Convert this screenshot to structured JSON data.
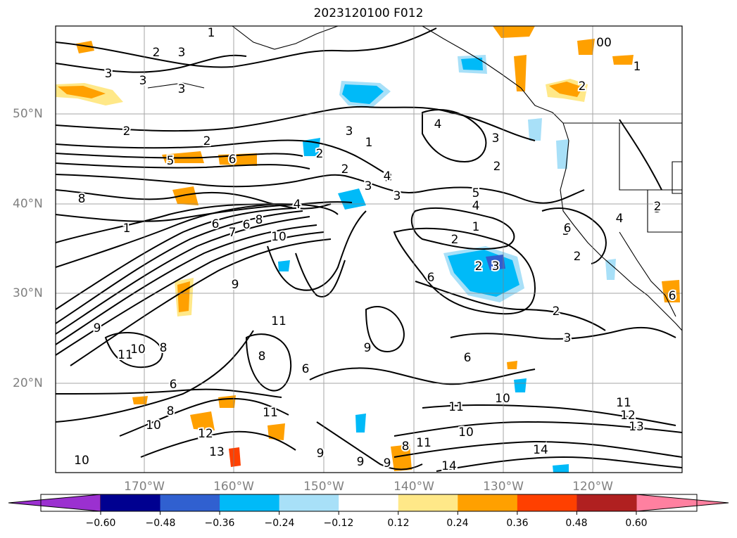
{
  "title": "2023120100 F012",
  "lat_labels": [
    "50°N",
    "40°N",
    "30°N",
    "20°N"
  ],
  "lon_labels": [
    "170°W",
    "160°W",
    "150°W",
    "140°W",
    "130°W",
    "120°W"
  ],
  "colorbar": {
    "ticks": [
      "−0.60",
      "−0.48",
      "−0.36",
      "−0.24",
      "−0.12",
      "0.12",
      "0.24",
      "0.36",
      "0.48",
      "0.60"
    ],
    "colors": [
      "#9b30d0",
      "#000090",
      "#3060d0",
      "#00baf8",
      "#a8e0f8",
      "#ffffff",
      "#ffe888",
      "#ffa000",
      "#ff4000",
      "#b02020",
      "#ff80a0"
    ]
  },
  "contour_labels": [
    {
      "text": "1"
    },
    {
      "text": "2"
    },
    {
      "text": "3"
    },
    {
      "text": "3"
    },
    {
      "text": "3"
    },
    {
      "text": "3"
    },
    {
      "text": "00"
    },
    {
      "text": "1"
    },
    {
      "text": "2"
    },
    {
      "text": "2"
    },
    {
      "text": "2"
    },
    {
      "text": "4"
    },
    {
      "text": "3"
    },
    {
      "text": "3"
    },
    {
      "text": "5"
    },
    {
      "text": "6"
    },
    {
      "text": "1"
    },
    {
      "text": "2"
    },
    {
      "text": "3"
    },
    {
      "text": "2"
    },
    {
      "text": "4"
    },
    {
      "text": "2"
    },
    {
      "text": "3"
    },
    {
      "text": "5"
    },
    {
      "text": "4"
    },
    {
      "text": "8"
    },
    {
      "text": "6"
    },
    {
      "text": "1"
    },
    {
      "text": "6"
    },
    {
      "text": "7"
    },
    {
      "text": "8"
    },
    {
      "text": "10"
    },
    {
      "text": "1"
    },
    {
      "text": "2"
    },
    {
      "text": "3"
    },
    {
      "text": "4"
    },
    {
      "text": "4"
    },
    {
      "text": "5"
    },
    {
      "text": "2"
    },
    {
      "text": "3"
    },
    {
      "text": "2"
    },
    {
      "text": "9"
    },
    {
      "text": "9"
    },
    {
      "text": "11"
    },
    {
      "text": "9"
    },
    {
      "text": "11"
    },
    {
      "text": "10"
    },
    {
      "text": "8"
    },
    {
      "text": "6"
    },
    {
      "text": "8"
    },
    {
      "text": "8"
    },
    {
      "text": "6"
    },
    {
      "text": "6"
    },
    {
      "text": "11"
    },
    {
      "text": "10"
    },
    {
      "text": "11"
    },
    {
      "text": "12"
    },
    {
      "text": "13"
    },
    {
      "text": "10"
    },
    {
      "text": "12"
    },
    {
      "text": "13"
    },
    {
      "text": "11"
    },
    {
      "text": "9"
    },
    {
      "text": "8"
    },
    {
      "text": "9"
    },
    {
      "text": "11"
    },
    {
      "text": "10"
    },
    {
      "text": "14"
    },
    {
      "text": "14"
    },
    {
      "text": "10"
    },
    {
      "text": "9"
    },
    {
      "text": "3"
    },
    {
      "text": "2"
    },
    {
      "text": "6"
    },
    {
      "text": "6"
    },
    {
      "text": "2"
    },
    {
      "text": "6"
    },
    {
      "text": "4"
    },
    {
      "text": "3"
    }
  ]
}
